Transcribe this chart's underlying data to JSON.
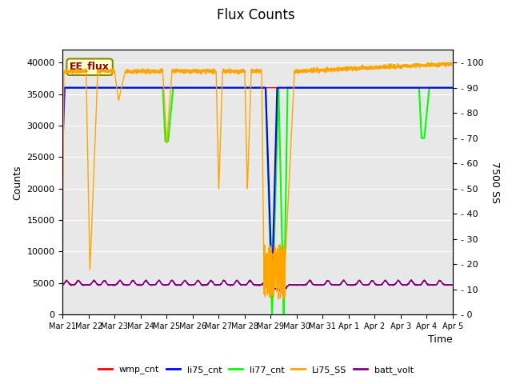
{
  "title": "Flux Counts",
  "ylabel_left": "Counts",
  "ylabel_right": "7500 SS",
  "xlabel": "Time",
  "annotation": "EE_flux",
  "ylim_left": [
    0,
    42000
  ],
  "ylim_right": [
    0,
    105
  ],
  "xtick_labels": [
    "Mar 21",
    "Mar 22",
    "Mar 23",
    "Mar 24",
    "Mar 25",
    "Mar 26",
    "Mar 27",
    "Mar 28",
    "Mar 29",
    "Mar 30",
    "Mar 31",
    "Apr 1",
    "Apr 2",
    "Apr 3",
    "Apr 4",
    "Apr 5"
  ],
  "legend_entries": [
    "wmp_cnt",
    "li75_cnt",
    "li77_cnt",
    "Li75_SS",
    "batt_volt"
  ],
  "legend_colors": [
    "red",
    "blue",
    "lime",
    "orange",
    "purple"
  ],
  "background_color": "#e8e8e8",
  "title_fontsize": 12,
  "ss_base": 96.5,
  "li77_level": 36000,
  "wmp_level": 36000,
  "li75_level": 36000,
  "batt_base": 4700
}
